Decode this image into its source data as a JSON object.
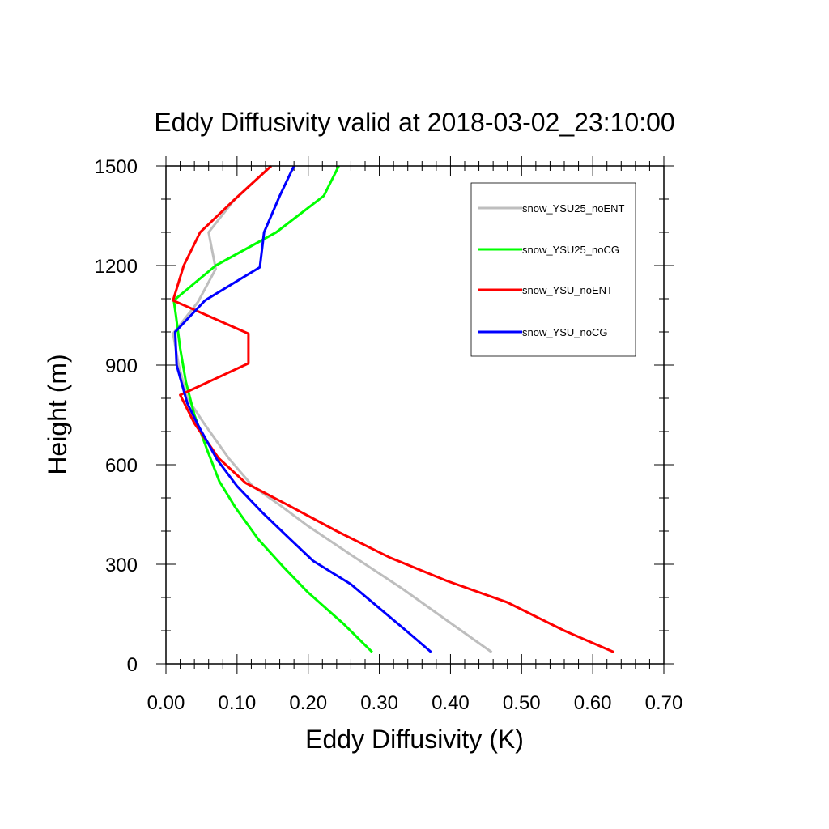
{
  "chart_data": {
    "type": "line",
    "title": "Eddy Diffusivity valid at 2018-03-02_23:10:00",
    "xlabel": "Eddy Diffusivity (K)",
    "ylabel": "Height (m)",
    "xlim": [
      0,
      0.7
    ],
    "ylim": [
      0,
      1500
    ],
    "xticks": [
      "0.00",
      "0.10",
      "0.20",
      "0.30",
      "0.40",
      "0.50",
      "0.60",
      "0.70"
    ],
    "yticks": [
      "0",
      "300",
      "600",
      "900",
      "1200",
      "1500"
    ],
    "grid": false,
    "legend_position": "top-right",
    "series": [
      {
        "name": "snow_YSU25_noENT",
        "color": "#bebebe",
        "points": [
          [
            0.458,
            35
          ],
          [
            0.412,
            105
          ],
          [
            0.33,
            230
          ],
          [
            0.266,
            320
          ],
          [
            0.2,
            415
          ],
          [
            0.159,
            480
          ],
          [
            0.122,
            535
          ],
          [
            0.088,
            620
          ],
          [
            0.055,
            720
          ],
          [
            0.03,
            800
          ],
          [
            0.018,
            900
          ],
          [
            0.01,
            995
          ],
          [
            0.045,
            1090
          ],
          [
            0.07,
            1190
          ],
          [
            0.06,
            1300
          ],
          [
            0.095,
            1395
          ],
          [
            0.148,
            1500
          ]
        ]
      },
      {
        "name": "snow_YSU25_noCG",
        "color": "#00ff00",
        "points": [
          [
            0.29,
            35
          ],
          [
            0.25,
            120
          ],
          [
            0.2,
            215
          ],
          [
            0.166,
            290
          ],
          [
            0.13,
            375
          ],
          [
            0.098,
            470
          ],
          [
            0.075,
            550
          ],
          [
            0.057,
            650
          ],
          [
            0.04,
            750
          ],
          [
            0.028,
            850
          ],
          [
            0.02,
            950
          ],
          [
            0.014,
            1050
          ],
          [
            0.011,
            1095
          ],
          [
            0.07,
            1200
          ],
          [
            0.155,
            1300
          ],
          [
            0.222,
            1410
          ],
          [
            0.243,
            1500
          ]
        ]
      },
      {
        "name": "snow_YSU_noENT",
        "color": "#ff0000",
        "points": [
          [
            0.63,
            35
          ],
          [
            0.56,
            100
          ],
          [
            0.48,
            185
          ],
          [
            0.395,
            250
          ],
          [
            0.315,
            320
          ],
          [
            0.24,
            400
          ],
          [
            0.17,
            480
          ],
          [
            0.112,
            545
          ],
          [
            0.074,
            620
          ],
          [
            0.04,
            725
          ],
          [
            0.02,
            810
          ],
          [
            0.116,
            905
          ],
          [
            0.116,
            995
          ],
          [
            0.01,
            1095
          ],
          [
            0.025,
            1200
          ],
          [
            0.048,
            1300
          ],
          [
            0.097,
            1400
          ],
          [
            0.148,
            1500
          ]
        ]
      },
      {
        "name": "snow_YSU_noCG",
        "color": "#0000ff",
        "points": [
          [
            0.373,
            35
          ],
          [
            0.335,
            105
          ],
          [
            0.26,
            240
          ],
          [
            0.207,
            310
          ],
          [
            0.17,
            385
          ],
          [
            0.136,
            455
          ],
          [
            0.1,
            535
          ],
          [
            0.072,
            615
          ],
          [
            0.045,
            720
          ],
          [
            0.03,
            785
          ],
          [
            0.015,
            900
          ],
          [
            0.013,
            1000
          ],
          [
            0.055,
            1095
          ],
          [
            0.132,
            1195
          ],
          [
            0.138,
            1300
          ],
          [
            0.16,
            1410
          ],
          [
            0.18,
            1500
          ]
        ]
      }
    ]
  }
}
